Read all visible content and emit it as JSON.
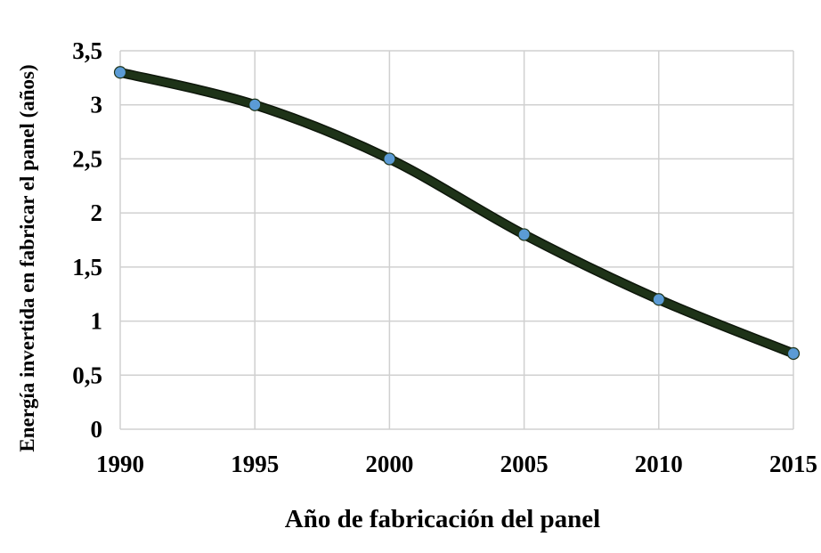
{
  "chart_data": {
    "type": "line",
    "title": "",
    "xlabel": "Año de fabricación del panel",
    "ylabel": "Energía invertida en fabricar el panel (años)",
    "x": [
      1990,
      1995,
      2000,
      2005,
      2010,
      2015
    ],
    "series": [
      {
        "values": [
          3.3,
          3.0,
          2.5,
          1.8,
          1.2,
          0.7
        ]
      }
    ],
    "xlim": [
      1990,
      2015
    ],
    "ylim": [
      0,
      3.5
    ],
    "x_ticks": [
      "1990",
      "1995",
      "2000",
      "2005",
      "2010",
      "2015"
    ],
    "y_ticks": [
      "0",
      "0,5",
      "1",
      "1,5",
      "2",
      "2,5",
      "3",
      "3,5"
    ],
    "grid": true,
    "legend": "none",
    "colors": {
      "line": "#1e3318",
      "marker": "#5b9bd5",
      "grid": "#d0d0d0"
    }
  }
}
